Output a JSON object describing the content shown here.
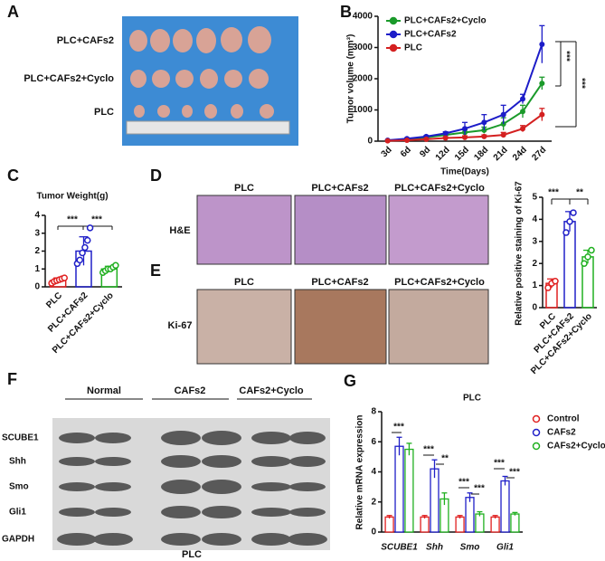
{
  "figure": {
    "letters": [
      "A",
      "B",
      "C",
      "D",
      "E",
      "F",
      "G"
    ],
    "A_labels": [
      "PLC+CAFs2",
      "PLC+CAFs2+Cyclo",
      "PLC"
    ],
    "D_columns": [
      "PLC",
      "PLC+CAFs2",
      "PLC+CAFs2+Cyclo"
    ],
    "D_row": "H&E",
    "E_columns": [
      "PLC",
      "PLC+CAFs2",
      "PLC+CAFs2+Cyclo"
    ],
    "E_row": "Ki-67",
    "F_groups": [
      "Normal",
      "CAFs2",
      "CAFs2+Cyclo"
    ],
    "F_rows": [
      "SCUBE1",
      "Shh",
      "Smo",
      "Gli1",
      "GAPDH"
    ],
    "F_caption": "PLC"
  },
  "chart_data": [
    {
      "type": "line",
      "ylabel": "Tumor volume (mm³)",
      "xlabel": "Time(Days)",
      "categories": [
        "3d",
        "6d",
        "9d",
        "12d",
        "15d",
        "18d",
        "21d",
        "24d",
        "27d"
      ],
      "ylim": [
        0,
        4000
      ],
      "yticks": [
        0,
        1000,
        2000,
        3000,
        4000
      ],
      "series": [
        {
          "name": "PLC+CAFs2+Cyclo",
          "color": "#1a9a2a",
          "values": [
            20,
            60,
            120,
            200,
            280,
            350,
            550,
            950,
            1850
          ],
          "errors": [
            10,
            20,
            30,
            50,
            80,
            100,
            200,
            200,
            200
          ]
        },
        {
          "name": "PLC+CAFs2",
          "color": "#1c1cc8",
          "values": [
            30,
            80,
            150,
            250,
            400,
            600,
            850,
            1350,
            3100
          ],
          "errors": [
            10,
            20,
            30,
            50,
            200,
            250,
            300,
            150,
            600
          ]
        },
        {
          "name": "PLC",
          "color": "#d42020",
          "values": [
            10,
            30,
            60,
            100,
            120,
            150,
            200,
            400,
            850
          ],
          "errors": [
            5,
            10,
            20,
            30,
            50,
            50,
            80,
            100,
            200
          ]
        }
      ],
      "annotations": [
        "***",
        "***"
      ]
    },
    {
      "type": "bar",
      "title": "Tumor Weight(g)",
      "categories": [
        "PLC",
        "PLC+CAFs2",
        "PLC+CAFs2+Cyclo"
      ],
      "colors": [
        "#e02020",
        "#2020c8",
        "#20b020"
      ],
      "ylim": [
        0,
        4
      ],
      "yticks": [
        0,
        1,
        2,
        3,
        4
      ],
      "values": [
        0.35,
        2.0,
        1.0
      ],
      "errors": [
        0.15,
        0.8,
        0.15
      ],
      "points": [
        [
          0.2,
          0.3,
          0.35,
          0.4,
          0.45,
          0.5
        ],
        [
          1.3,
          1.5,
          1.9,
          2.2,
          2.6,
          3.3
        ],
        [
          0.8,
          0.9,
          1.0,
          1.0,
          1.1,
          1.2
        ]
      ],
      "annotations": [
        "***",
        "***"
      ]
    },
    {
      "type": "bar",
      "ylabel": "Relative positive staining of Ki-67",
      "categories": [
        "PLC",
        "PLC+CAFs2",
        "PLC+CAFs2+Cyclo"
      ],
      "colors": [
        "#e02020",
        "#2020c8",
        "#20b020"
      ],
      "ylim": [
        0,
        5
      ],
      "yticks": [
        0,
        1,
        2,
        3,
        4,
        5
      ],
      "values": [
        1.1,
        3.9,
        2.3
      ],
      "errors": [
        0.2,
        0.45,
        0.3
      ],
      "points": [
        [
          0.9,
          1.1,
          1.2
        ],
        [
          3.4,
          3.9,
          4.3
        ],
        [
          2.0,
          2.3,
          2.6
        ]
      ],
      "annotations": [
        "***",
        "**"
      ]
    },
    {
      "type": "bar",
      "title": "PLC",
      "ylabel": "Relative mRNA expression",
      "categories": [
        "SCUBE1",
        "Shh",
        "Smo",
        "Gli1"
      ],
      "ylim": [
        0,
        8
      ],
      "yticks": [
        0,
        2,
        4,
        6,
        8
      ],
      "series": [
        {
          "name": "Control",
          "color": "#e02020",
          "values": [
            1,
            1,
            1,
            1
          ],
          "errors": [
            0.1,
            0.1,
            0.1,
            0.1
          ]
        },
        {
          "name": "CAFs2",
          "color": "#2020c8",
          "values": [
            5.7,
            4.2,
            2.3,
            3.4
          ],
          "errors": [
            0.6,
            0.6,
            0.3,
            0.3
          ]
        },
        {
          "name": "CAFs2+Cyclo",
          "color": "#20b020",
          "values": [
            5.5,
            2.2,
            1.2,
            1.2
          ],
          "errors": [
            0.4,
            0.4,
            0.15,
            0.1
          ]
        }
      ],
      "annotations": [
        "***",
        "***",
        "**",
        "***",
        "***",
        "***",
        "***"
      ]
    }
  ]
}
